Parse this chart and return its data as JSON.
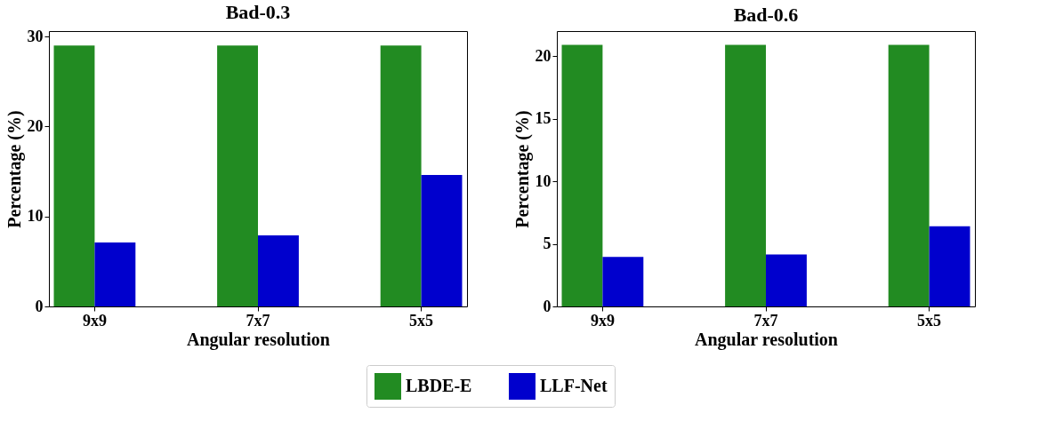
{
  "chart_data": [
    {
      "type": "bar",
      "title": "Bad-0.3",
      "xlabel": "Angular resolution",
      "ylabel": "Percentage (%)",
      "categories": [
        "9x9",
        "7x7",
        "5x5"
      ],
      "ylim": [
        0,
        30.6
      ],
      "yticks": [
        0,
        10,
        20,
        30
      ],
      "grid": false,
      "legend": "bottom",
      "series": [
        {
          "name": "LBDE-E",
          "color": "#228b22",
          "values": [
            29.0,
            29.0,
            29.0
          ]
        },
        {
          "name": "LLF-Net",
          "color": "#0000cd",
          "values": [
            7.1,
            7.9,
            14.6
          ]
        }
      ]
    },
    {
      "type": "bar",
      "title": "Bad-0.6",
      "xlabel": "Angular resolution",
      "ylabel": "Percentage (%)",
      "categories": [
        "9x9",
        "7x7",
        "5x5"
      ],
      "ylim": [
        0,
        22
      ],
      "yticks": [
        0,
        5,
        10,
        15,
        20
      ],
      "grid": false,
      "legend": "bottom",
      "series": [
        {
          "name": "LBDE-E",
          "color": "#228b22",
          "values": [
            20.9,
            20.9,
            20.9
          ]
        },
        {
          "name": "LLF-Net",
          "color": "#0000cd",
          "values": [
            3.96,
            4.16,
            6.4
          ]
        }
      ]
    }
  ]
}
